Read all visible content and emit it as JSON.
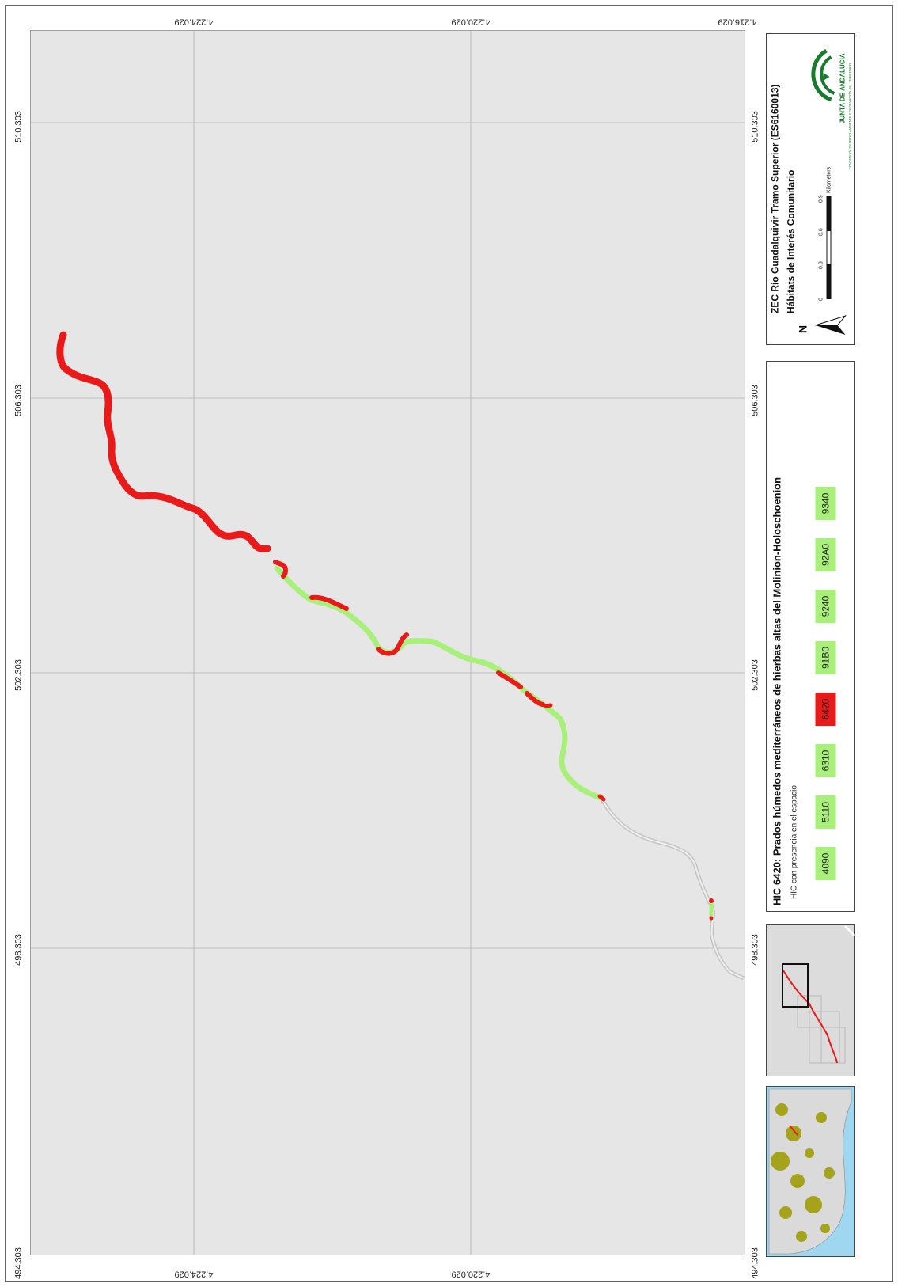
{
  "map": {
    "title": "HIC 6420: Prados húmedos mediterráneos de hierbas altas del Molinion-Holoschoenion",
    "subtitle": "HIC con presencia en el espacio",
    "site_title": "ZEC Río Guadalquivir Tramo Superior (ES6160013)",
    "site_subtitle": "Hábitats de Interés Comunitario",
    "org_name": "JUNTA DE ANDALUCIA",
    "org_dept": "CONSEJERÍA DE MEDIO AMBIENTE Y ORDENACIÓN DEL TERRITORIO",
    "north_label": "N",
    "scale": {
      "ticks": [
        "0",
        "0.3",
        "0.6",
        "0.9"
      ],
      "unit": "Kilometers"
    },
    "legend": [
      {
        "code": "4090",
        "color": "#a8f07a"
      },
      {
        "code": "5110",
        "color": "#a8f07a"
      },
      {
        "code": "6310",
        "color": "#a8f07a"
      },
      {
        "code": "6420",
        "color": "#e81a1a"
      },
      {
        "code": "91B0",
        "color": "#a8f07a"
      },
      {
        "code": "9240",
        "color": "#a8f07a"
      },
      {
        "code": "92A0",
        "color": "#a8f07a"
      },
      {
        "code": "9340",
        "color": "#a8f07a"
      }
    ],
    "grid_x_labels": [
      "4.224.029",
      "4.220.029",
      "4.216.029"
    ],
    "grid_y_labels": [
      "510.303",
      "506.303",
      "502.303",
      "498.303",
      "494.303"
    ],
    "colors": {
      "present": "#e81a1a",
      "other": "#a8f07a",
      "map_bg": "#e6e6e6",
      "route": "#bdbdbd"
    }
  }
}
